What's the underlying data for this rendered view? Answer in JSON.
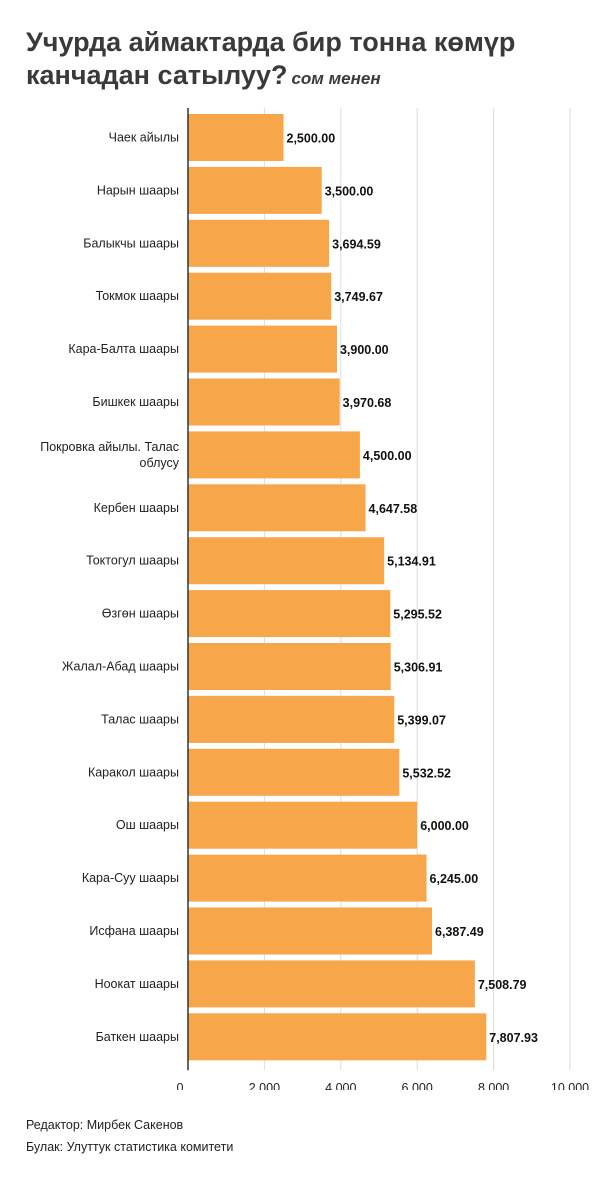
{
  "title": "Учурда аймактарда бир тонна көмүр канчадан сатылуу?",
  "subtitle": "сом менен",
  "footer": {
    "editor": "Редактор: Мирбек Сакенов",
    "source": "Булак: Улуттук статистика комитети"
  },
  "colors": {
    "bar": "#F7A64A",
    "grid": "#dddddd",
    "axis": "#333333"
  },
  "chart_data": {
    "type": "bar",
    "orientation": "horizontal",
    "categories": [
      "Чаек айылы",
      "Нарын шаары",
      "Балыкчы шаары",
      "Токмок шаары",
      "Кара-Балта шаары",
      "Бишкек шаары",
      "Покровка айылы. Талас облусу",
      "Кербен шаары",
      "Токтогул шаары",
      "Өзгөн шаары",
      "Жалал-Абад шаары",
      "Талас шаары",
      "Каракол шаары",
      "Ош шаары",
      "Кара-Суу шаары",
      "Исфана шаары",
      "Ноокат шаары",
      "Баткен шаары"
    ],
    "values": [
      2500.0,
      3500.0,
      3694.59,
      3749.67,
      3900.0,
      3970.68,
      4500.0,
      4647.58,
      5134.91,
      5295.52,
      5306.91,
      5399.07,
      5532.52,
      6000.0,
      6245.0,
      6387.49,
      7508.79,
      7807.93
    ],
    "value_labels": [
      "2,500.00",
      "3,500.00",
      "3,694.59",
      "3,749.67",
      "3,900.00",
      "3,970.68",
      "4,500.00",
      "4,647.58",
      "5,134.91",
      "5,295.52",
      "5,306.91",
      "5,399.07",
      "5,532.52",
      "6,000.00",
      "6,245.00",
      "6,387.49",
      "7,508.79",
      "7,807.93"
    ],
    "xlim": [
      0,
      10000
    ],
    "xticks": [
      0,
      2000,
      4000,
      6000,
      8000,
      10000
    ],
    "xtick_labels": [
      "0",
      "2,000",
      "4,000",
      "6,000",
      "8,000",
      "10,000"
    ],
    "grid": true,
    "legend": "none"
  }
}
